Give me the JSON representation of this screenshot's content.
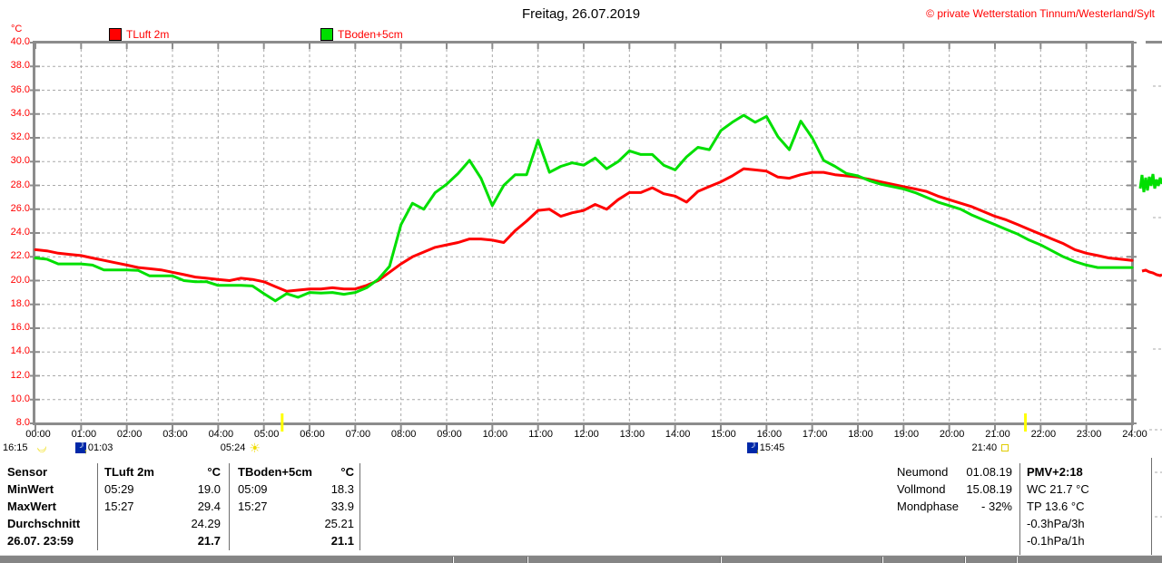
{
  "header": {
    "title": "Freitag, 26.07.2019",
    "copyright": "© private Wetterstation Tinnum/Westerland/Sylt",
    "y_unit": "°C"
  },
  "legend": {
    "items": [
      {
        "label": "TLuft 2m",
        "color": "#ff0000"
      },
      {
        "label": "TBoden+5cm",
        "color": "#00df00"
      }
    ]
  },
  "chart_data": {
    "type": "line",
    "title": "Freitag, 26.07.2019",
    "ylabel": "°C",
    "xlabel": "",
    "ylim": [
      8,
      40
    ],
    "xlim_hours": [
      0,
      24
    ],
    "grid": true,
    "x_step_minutes": 15,
    "x_ticks": [
      "00:00",
      "01:00",
      "02:00",
      "03:00",
      "04:00",
      "05:00",
      "06:00",
      "07:00",
      "08:00",
      "09:00",
      "10:00",
      "11:00",
      "12:00",
      "13:00",
      "14:00",
      "15:00",
      "16:00",
      "17:00",
      "18:00",
      "19:00",
      "20:00",
      "21:00",
      "22:00",
      "23:00",
      "24:00"
    ],
    "y_ticks": [
      "40.0",
      "38.0",
      "36.0",
      "34.0",
      "32.0",
      "30.0",
      "28.0",
      "26.0",
      "24.0",
      "22.0",
      "20.0",
      "18.0",
      "16.0",
      "14.0",
      "12.0",
      "10.0",
      "8.0"
    ],
    "series": [
      {
        "name": "TLuft 2m",
        "color": "#ff0000",
        "values": [
          22.6,
          22.5,
          22.3,
          22.2,
          22.1,
          21.9,
          21.7,
          21.5,
          21.3,
          21.1,
          21.0,
          20.9,
          20.7,
          20.5,
          20.3,
          20.2,
          20.1,
          20.0,
          20.2,
          20.1,
          19.9,
          19.5,
          19.1,
          19.2,
          19.3,
          19.3,
          19.4,
          19.3,
          19.3,
          19.6,
          20.0,
          20.7,
          21.4,
          22.0,
          22.4,
          22.8,
          23.0,
          23.2,
          23.5,
          23.5,
          23.4,
          23.2,
          24.2,
          25.0,
          25.9,
          26.0,
          25.4,
          25.7,
          25.9,
          26.4,
          26.0,
          26.8,
          27.4,
          27.4,
          27.8,
          27.3,
          27.1,
          26.6,
          27.5,
          27.9,
          28.3,
          28.8,
          29.4,
          29.3,
          29.2,
          28.7,
          28.6,
          28.9,
          29.1,
          29.1,
          28.9,
          28.8,
          28.7,
          28.5,
          28.3,
          28.1,
          27.9,
          27.7,
          27.5,
          27.1,
          26.8,
          26.5,
          26.2,
          25.8,
          25.4,
          25.1,
          24.7,
          24.3,
          23.9,
          23.5,
          23.1,
          22.6,
          22.3,
          22.1,
          21.9,
          21.8,
          21.7
        ]
      },
      {
        "name": "TBoden+5cm",
        "color": "#00df00",
        "values": [
          21.9,
          21.8,
          21.4,
          21.4,
          21.4,
          21.3,
          20.9,
          20.9,
          20.9,
          20.85,
          20.4,
          20.4,
          20.4,
          20.0,
          19.9,
          19.9,
          19.6,
          19.6,
          19.6,
          19.55,
          18.9,
          18.3,
          18.9,
          18.6,
          19.0,
          18.95,
          19.0,
          18.85,
          19.0,
          19.4,
          20.1,
          21.2,
          24.7,
          26.5,
          26.0,
          27.4,
          28.1,
          29.0,
          30.1,
          28.6,
          26.3,
          28.0,
          28.9,
          28.9,
          31.8,
          29.1,
          29.6,
          29.9,
          29.7,
          30.3,
          29.4,
          30.0,
          30.9,
          30.6,
          30.6,
          29.7,
          29.3,
          30.4,
          31.2,
          31.0,
          32.6,
          33.3,
          33.9,
          33.3,
          33.8,
          32.1,
          31.0,
          33.4,
          32.0,
          30.1,
          29.6,
          29.0,
          28.8,
          28.4,
          28.1,
          27.9,
          27.7,
          27.4,
          27.0,
          26.6,
          26.3,
          26.0,
          25.5,
          25.1,
          24.7,
          24.3,
          23.9,
          23.4,
          23.0,
          22.5,
          22.0,
          21.6,
          21.3,
          21.1,
          21.1,
          21.1,
          21.1
        ]
      }
    ],
    "sun_moon_markers": [
      {
        "time": "16:15",
        "icon": "moon-prev-icon",
        "anchor": "left-edge"
      },
      {
        "time": "01:03",
        "icon": "moonrise-icon",
        "anchor": "time",
        "arrow": "up"
      },
      {
        "time": "05:24",
        "icon": "sunrise-icon",
        "anchor": "time",
        "axis_tick_color": "#ffff00"
      },
      {
        "time": "15:45",
        "icon": "moonset-icon",
        "anchor": "time",
        "arrow": "down"
      },
      {
        "time": "21:40",
        "icon": "sunset-icon",
        "anchor": "time",
        "axis_tick_color": "#ffff00"
      }
    ]
  },
  "stats_table": {
    "row_labels": [
      "Sensor",
      "MinWert",
      "MaxWert",
      "Durchschnitt",
      "26.07. 23:59"
    ],
    "columns": [
      {
        "header": "TLuft 2m",
        "unit": "°C",
        "min_time": "05:29",
        "min_value": "19.0",
        "max_time": "15:27",
        "max_value": "29.4",
        "average": "24.29",
        "last_value": "21.7"
      },
      {
        "header": "TBoden+5cm",
        "unit": "°C",
        "min_time": "05:09",
        "min_value": "18.3",
        "max_time": "15:27",
        "max_value": "33.9",
        "average": "25.21",
        "last_value": "21.1"
      }
    ]
  },
  "moon_info": {
    "rows": [
      {
        "label": "Neumond",
        "value": "01.08.19"
      },
      {
        "label": "Vollmond",
        "value": "15.08.19"
      },
      {
        "label": "Mondphase",
        "value": "- 32%"
      }
    ]
  },
  "status_info": {
    "lines": [
      "PMV+2:18",
      "WC 21.7 °C",
      "TP 13.6 °C",
      "-0.3hPa/3h",
      "-0.1hPa/1h"
    ]
  }
}
